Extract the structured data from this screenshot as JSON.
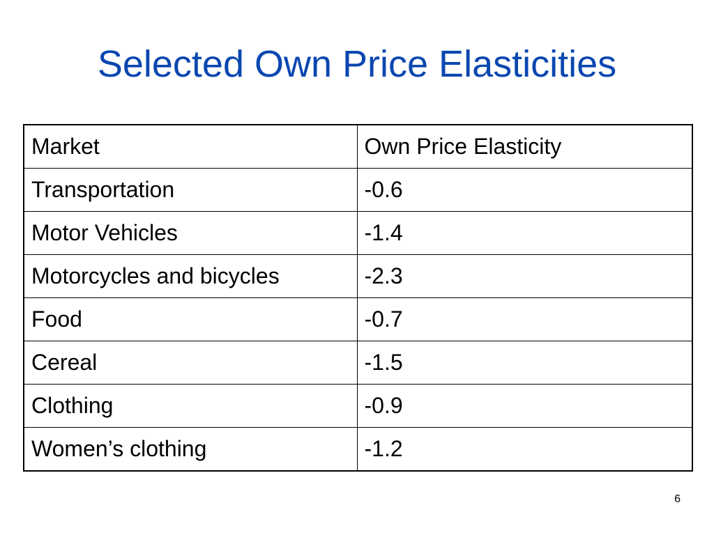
{
  "title": "Selected Own Price Elasticities",
  "table": {
    "headers": [
      "Market",
      "Own Price Elasticity"
    ],
    "rows": [
      [
        "Transportation",
        "-0.6"
      ],
      [
        "Motor Vehicles",
        "-1.4"
      ],
      [
        "Motorcycles and bicycles",
        "-2.3"
      ],
      [
        "Food",
        "-0.7"
      ],
      [
        "Cereal",
        "-1.5"
      ],
      [
        "Clothing",
        "-0.9"
      ],
      [
        "Women’s clothing",
        "-1.2"
      ]
    ]
  },
  "page_number": "6",
  "colors": {
    "title": "#0a47b0",
    "border": "#000000",
    "text": "#000000",
    "background": "#ffffff"
  }
}
